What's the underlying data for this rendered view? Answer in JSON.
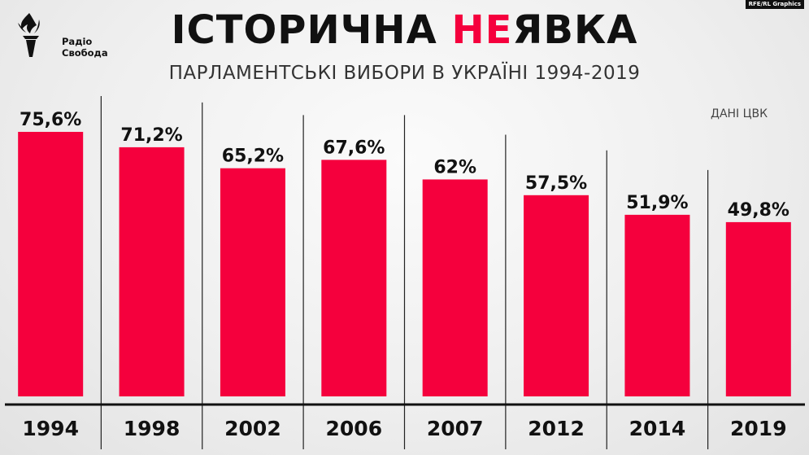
{
  "header": {
    "title_before": "ІСТОРИЧНА ",
    "title_accent": "НЕ",
    "title_after": "ЯВКА",
    "subtitle": "ПАРЛАМЕНТСЬКІ ВИБОРИ В УКРАЇНІ 1994-2019",
    "source": "ДАНІ ЦВК",
    "badge": "RFE/RL Graphics"
  },
  "logo": {
    "line1": "Радіо",
    "line2": "Свобода",
    "icon": "torch-icon"
  },
  "colors": {
    "bar": "#f5003d",
    "accent": "#f5003d",
    "text": "#111111"
  },
  "chart_data": {
    "type": "bar",
    "categories": [
      "1994",
      "1998",
      "2002",
      "2006",
      "2007",
      "2012",
      "2014",
      "2019"
    ],
    "values": [
      75.6,
      71.2,
      65.2,
      67.6,
      62,
      57.5,
      51.9,
      49.8
    ],
    "value_labels": [
      "75,6%",
      "71,2%",
      "65,2%",
      "67,6%",
      "62%",
      "57,5%",
      "51,9%",
      "49,8%"
    ],
    "title": "ІСТОРИЧНА НЕЯВКА",
    "subtitle": "ПАРЛАМЕНТСЬКІ ВИБОРИ В УКРАЇНІ 1994-2019",
    "xlabel": "",
    "ylabel": "",
    "ylim": [
      0,
      100
    ],
    "grid": false,
    "legend": "none"
  }
}
